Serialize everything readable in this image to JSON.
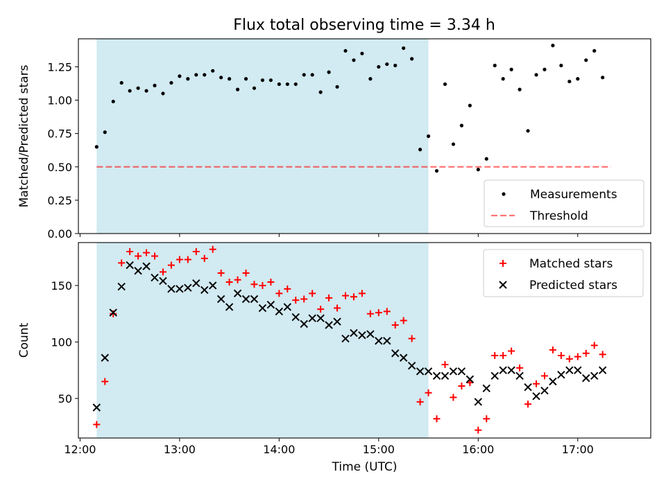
{
  "title": "Flux total observing time = 3.34 h",
  "colors": {
    "shade": "#add8e6",
    "measurement": "#000000",
    "threshold": "#ff0000",
    "matched": "#ff0000",
    "predicted": "#000000"
  },
  "chart_data": [
    {
      "type": "scatter",
      "panel": "top",
      "ylabel": "Matched/Predicted stars",
      "xlabel": "",
      "ylim": [
        0,
        1.46
      ],
      "yticks": [
        0.0,
        0.25,
        0.5,
        0.75,
        1.0,
        1.25
      ],
      "ytick_labels": [
        "0.00",
        "0.25",
        "0.50",
        "0.75",
        "1.00",
        "1.25"
      ],
      "shaded_region": {
        "x_start": "12:10",
        "x_end": "15:30"
      },
      "legend": {
        "position": "lower-right",
        "entries": [
          "Measurements",
          "Threshold"
        ]
      },
      "threshold": {
        "name": "Threshold",
        "y": 0.5,
        "x_start": "12:10",
        "x_end": "17:20",
        "style": "dashed"
      },
      "series": [
        {
          "name": "Measurements",
          "marker": "dot",
          "points": [
            [
              "12:10",
              0.65
            ],
            [
              "12:15",
              0.76
            ],
            [
              "12:20",
              0.99
            ],
            [
              "12:25",
              1.13
            ],
            [
              "12:30",
              1.07
            ],
            [
              "12:35",
              1.09
            ],
            [
              "12:40",
              1.07
            ],
            [
              "12:45",
              1.11
            ],
            [
              "12:50",
              1.05
            ],
            [
              "12:55",
              1.13
            ],
            [
              "13:00",
              1.18
            ],
            [
              "13:05",
              1.16
            ],
            [
              "13:10",
              1.19
            ],
            [
              "13:15",
              1.19
            ],
            [
              "13:20",
              1.22
            ],
            [
              "13:25",
              1.17
            ],
            [
              "13:30",
              1.16
            ],
            [
              "13:35",
              1.08
            ],
            [
              "13:40",
              1.16
            ],
            [
              "13:45",
              1.09
            ],
            [
              "13:50",
              1.15
            ],
            [
              "13:55",
              1.15
            ],
            [
              "14:00",
              1.12
            ],
            [
              "14:05",
              1.12
            ],
            [
              "14:10",
              1.12
            ],
            [
              "14:15",
              1.19
            ],
            [
              "14:20",
              1.19
            ],
            [
              "14:25",
              1.06
            ],
            [
              "14:30",
              1.21
            ],
            [
              "14:35",
              1.1
            ],
            [
              "14:40",
              1.37
            ],
            [
              "14:45",
              1.3
            ],
            [
              "14:50",
              1.35
            ],
            [
              "14:55",
              1.16
            ],
            [
              "15:00",
              1.25
            ],
            [
              "15:05",
              1.27
            ],
            [
              "15:10",
              1.26
            ],
            [
              "15:15",
              1.39
            ],
            [
              "15:20",
              1.31
            ],
            [
              "15:25",
              0.63
            ],
            [
              "15:30",
              0.73
            ],
            [
              "15:35",
              0.47
            ],
            [
              "15:40",
              1.12
            ],
            [
              "15:45",
              0.67
            ],
            [
              "15:50",
              0.81
            ],
            [
              "15:55",
              0.96
            ],
            [
              "16:00",
              0.48
            ],
            [
              "16:05",
              0.56
            ],
            [
              "16:10",
              1.26
            ],
            [
              "16:15",
              1.16
            ],
            [
              "16:20",
              1.23
            ],
            [
              "16:25",
              1.08
            ],
            [
              "16:30",
              0.77
            ],
            [
              "16:35",
              1.19
            ],
            [
              "16:40",
              1.23
            ],
            [
              "16:45",
              1.41
            ],
            [
              "16:50",
              1.26
            ],
            [
              "16:55",
              1.14
            ],
            [
              "17:00",
              1.16
            ],
            [
              "17:05",
              1.3
            ],
            [
              "17:10",
              1.37
            ],
            [
              "17:15",
              1.17
            ]
          ]
        }
      ]
    },
    {
      "type": "scatter",
      "panel": "bottom",
      "ylabel": "Count",
      "xlabel": "Time (UTC)",
      "ylim": [
        15,
        188
      ],
      "yticks": [
        50,
        100,
        150
      ],
      "ytick_labels": [
        "50",
        "100",
        "150"
      ],
      "xlim": [
        "11:59",
        "17:44"
      ],
      "xticks": [
        "12:00",
        "13:00",
        "14:00",
        "15:00",
        "16:00",
        "17:00"
      ],
      "xtick_labels": [
        "12:00",
        "13:00",
        "14:00",
        "15:00",
        "16:00",
        "17:00"
      ],
      "shaded_region": {
        "x_start": "12:10",
        "x_end": "15:30"
      },
      "legend": {
        "position": "top-right",
        "entries": [
          "Matched stars",
          "Predicted stars"
        ]
      },
      "series": [
        {
          "name": "Matched stars",
          "marker": "plus",
          "points": [
            [
              "12:10",
              27
            ],
            [
              "12:15",
              65
            ],
            [
              "12:20",
              125
            ],
            [
              "12:25",
              170
            ],
            [
              "12:30",
              180
            ],
            [
              "12:35",
              176
            ],
            [
              "12:40",
              179
            ],
            [
              "12:45",
              176
            ],
            [
              "12:50",
              162
            ],
            [
              "12:55",
              168
            ],
            [
              "13:00",
              173
            ],
            [
              "13:05",
              173
            ],
            [
              "13:10",
              180
            ],
            [
              "13:15",
              174
            ],
            [
              "13:20",
              182
            ],
            [
              "13:25",
              161
            ],
            [
              "13:30",
              153
            ],
            [
              "13:35",
              155
            ],
            [
              "13:40",
              161
            ],
            [
              "13:45",
              151
            ],
            [
              "13:50",
              150
            ],
            [
              "13:55",
              153
            ],
            [
              "14:00",
              143
            ],
            [
              "14:05",
              147
            ],
            [
              "14:10",
              137
            ],
            [
              "14:15",
              138
            ],
            [
              "14:20",
              143
            ],
            [
              "14:25",
              129
            ],
            [
              "14:30",
              139
            ],
            [
              "14:35",
              130
            ],
            [
              "14:40",
              141
            ],
            [
              "14:45",
              140
            ],
            [
              "14:50",
              143
            ],
            [
              "14:55",
              125
            ],
            [
              "15:00",
              126
            ],
            [
              "15:05",
              127
            ],
            [
              "15:10",
              115
            ],
            [
              "15:15",
              119
            ],
            [
              "15:20",
              103
            ],
            [
              "15:25",
              47
            ],
            [
              "15:30",
              55
            ],
            [
              "15:35",
              32
            ],
            [
              "15:40",
              80
            ],
            [
              "15:45",
              51
            ],
            [
              "15:50",
              61
            ],
            [
              "15:55",
              64
            ],
            [
              "16:00",
              22
            ],
            [
              "16:05",
              32
            ],
            [
              "16:10",
              88
            ],
            [
              "16:15",
              88
            ],
            [
              "16:20",
              92
            ],
            [
              "16:25",
              77
            ],
            [
              "16:30",
              45
            ],
            [
              "16:35",
              63
            ],
            [
              "16:40",
              70
            ],
            [
              "16:45",
              93
            ],
            [
              "16:50",
              88
            ],
            [
              "16:55",
              85
            ],
            [
              "17:00",
              87
            ],
            [
              "17:05",
              90
            ],
            [
              "17:10",
              97
            ],
            [
              "17:15",
              89
            ]
          ]
        },
        {
          "name": "Predicted stars",
          "marker": "x",
          "points": [
            [
              "12:10",
              42
            ],
            [
              "12:15",
              86
            ],
            [
              "12:20",
              126
            ],
            [
              "12:25",
              149
            ],
            [
              "12:30",
              168
            ],
            [
              "12:35",
              163
            ],
            [
              "12:40",
              167
            ],
            [
              "12:45",
              157
            ],
            [
              "12:50",
              154
            ],
            [
              "12:55",
              147
            ],
            [
              "13:00",
              147
            ],
            [
              "13:05",
              148
            ],
            [
              "13:10",
              152
            ],
            [
              "13:15",
              146
            ],
            [
              "13:20",
              150
            ],
            [
              "13:25",
              138
            ],
            [
              "13:30",
              131
            ],
            [
              "13:35",
              143
            ],
            [
              "13:40",
              138
            ],
            [
              "13:45",
              138
            ],
            [
              "13:50",
              130
            ],
            [
              "13:55",
              133
            ],
            [
              "14:00",
              127
            ],
            [
              "14:05",
              131
            ],
            [
              "14:10",
              122
            ],
            [
              "14:15",
              116
            ],
            [
              "14:20",
              121
            ],
            [
              "14:25",
              121
            ],
            [
              "14:30",
              115
            ],
            [
              "14:35",
              118
            ],
            [
              "14:40",
              103
            ],
            [
              "14:45",
              108
            ],
            [
              "14:50",
              106
            ],
            [
              "14:55",
              107
            ],
            [
              "15:00",
              101
            ],
            [
              "15:05",
              101
            ],
            [
              "15:10",
              90
            ],
            [
              "15:15",
              86
            ],
            [
              "15:20",
              79
            ],
            [
              "15:25",
              74
            ],
            [
              "15:30",
              74
            ],
            [
              "15:35",
              70
            ],
            [
              "15:40",
              70
            ],
            [
              "15:45",
              74
            ],
            [
              "15:50",
              74
            ],
            [
              "15:55",
              67
            ],
            [
              "16:00",
              47
            ],
            [
              "16:05",
              59
            ],
            [
              "16:10",
              70
            ],
            [
              "16:15",
              75
            ],
            [
              "16:20",
              75
            ],
            [
              "16:25",
              70
            ],
            [
              "16:30",
              60
            ],
            [
              "16:35",
              52
            ],
            [
              "16:40",
              57
            ],
            [
              "16:45",
              65
            ],
            [
              "16:50",
              71
            ],
            [
              "16:55",
              75
            ],
            [
              "17:00",
              75
            ],
            [
              "17:05",
              68
            ],
            [
              "17:10",
              70
            ],
            [
              "17:15",
              75
            ]
          ]
        }
      ]
    }
  ]
}
